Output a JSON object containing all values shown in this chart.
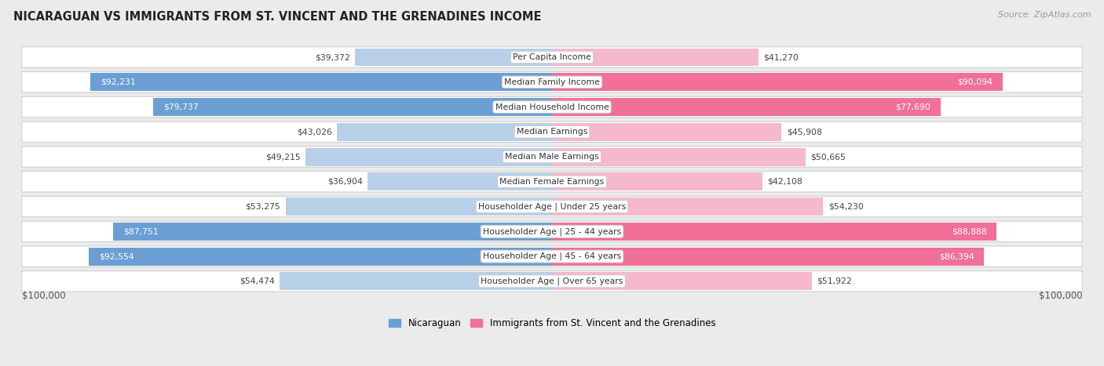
{
  "title": "NICARAGUAN VS IMMIGRANTS FROM ST. VINCENT AND THE GRENADINES INCOME",
  "source": "Source: ZipAtlas.com",
  "categories": [
    "Per Capita Income",
    "Median Family Income",
    "Median Household Income",
    "Median Earnings",
    "Median Male Earnings",
    "Median Female Earnings",
    "Householder Age | Under 25 years",
    "Householder Age | 25 - 44 years",
    "Householder Age | 45 - 64 years",
    "Householder Age | Over 65 years"
  ],
  "nicaraguan_values": [
    39372,
    92231,
    79737,
    43026,
    49215,
    36904,
    53275,
    87751,
    92554,
    54474
  ],
  "immigrant_values": [
    41270,
    90094,
    77690,
    45908,
    50665,
    42108,
    54230,
    88888,
    86394,
    51922
  ],
  "nicaraguan_labels": [
    "$39,372",
    "$92,231",
    "$79,737",
    "$43,026",
    "$49,215",
    "$36,904",
    "$53,275",
    "$87,751",
    "$92,554",
    "$54,474"
  ],
  "immigrant_labels": [
    "$41,270",
    "$90,094",
    "$77,690",
    "$45,908",
    "$50,665",
    "$42,108",
    "$54,230",
    "$88,888",
    "$86,394",
    "$51,922"
  ],
  "max_value": 100000,
  "nicaraguan_color_full": "#6b9fd4",
  "nicaraguan_color_light": "#b8cfe8",
  "immigrant_color_full": "#f07098",
  "immigrant_color_light": "#f5b8cc",
  "background_color": "#ebebeb",
  "legend_nicaraguan": "Nicaraguan",
  "legend_immigrant": "Immigrants from St. Vincent and the Grenadines",
  "xlabel_left": "$100,000",
  "xlabel_right": "$100,000",
  "full_bar_threshold": 75000
}
